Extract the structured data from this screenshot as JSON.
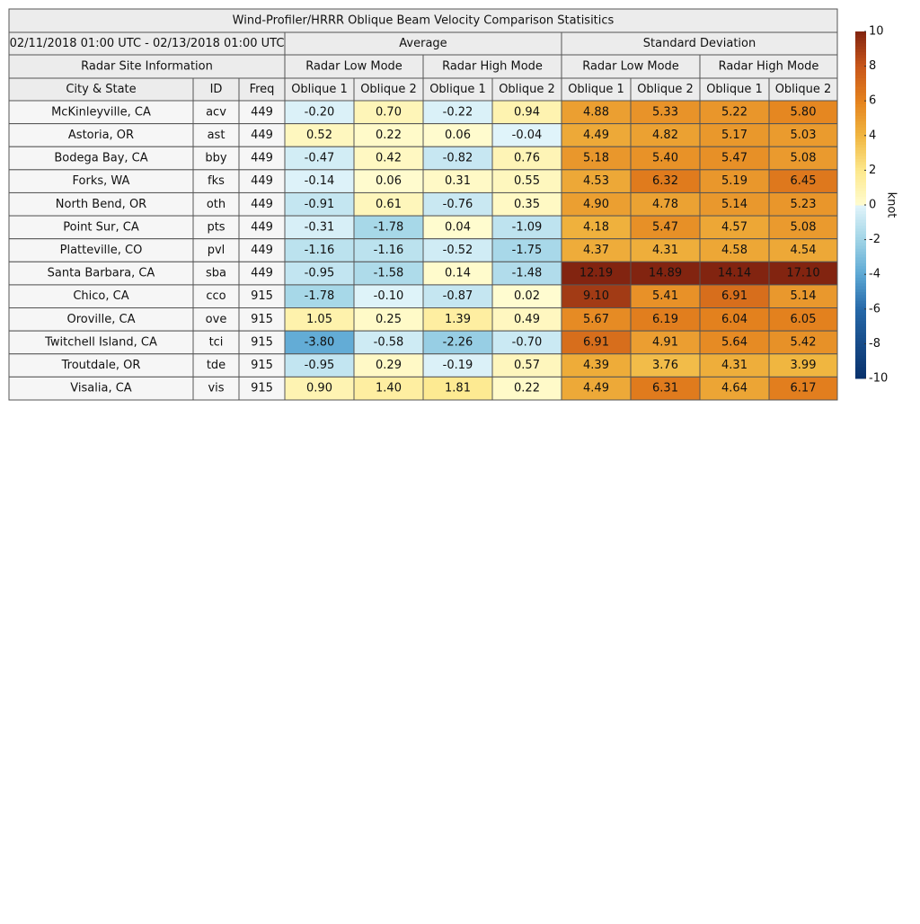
{
  "title": "Wind-Profiler/HRRR Oblique Beam Velocity Comparison Statisitics",
  "period": "02/11/2018 01:00 UTC - 02/13/2018 01:00 UTC",
  "site_info": "Radar Site Information",
  "groups": [
    "Average",
    "Standard Deviation"
  ],
  "modes": [
    "Radar Low Mode",
    "Radar High Mode",
    "Radar Low Mode",
    "Radar High Mode"
  ],
  "columns": [
    "City & State",
    "ID",
    "Freq",
    "Oblique 1",
    "Oblique 2",
    "Oblique 1",
    "Oblique 2",
    "Oblique 1",
    "Oblique 2",
    "Oblique 1",
    "Oblique 2"
  ],
  "rows": [
    [
      "McKinleyville, CA",
      "acv",
      "449",
      "-0.20",
      "0.70",
      "-0.22",
      "0.94",
      "4.88",
      "5.33",
      "5.22",
      "5.80"
    ],
    [
      "Astoria, OR",
      "ast",
      "449",
      "0.52",
      "0.22",
      "0.06",
      "-0.04",
      "4.49",
      "4.82",
      "5.17",
      "5.03"
    ],
    [
      "Bodega Bay, CA",
      "bby",
      "449",
      "-0.47",
      "0.42",
      "-0.82",
      "0.76",
      "5.18",
      "5.40",
      "5.47",
      "5.08"
    ],
    [
      "Forks, WA",
      "fks",
      "449",
      "-0.14",
      "0.06",
      "0.31",
      "0.55",
      "4.53",
      "6.32",
      "5.19",
      "6.45"
    ],
    [
      "North Bend, OR",
      "oth",
      "449",
      "-0.91",
      "0.61",
      "-0.76",
      "0.35",
      "4.90",
      "4.78",
      "5.14",
      "5.23"
    ],
    [
      "Point Sur, CA",
      "pts",
      "449",
      "-0.31",
      "-1.78",
      "0.04",
      "-1.09",
      "4.18",
      "5.47",
      "4.57",
      "5.08"
    ],
    [
      "Platteville, CO",
      "pvl",
      "449",
      "-1.16",
      "-1.16",
      "-0.52",
      "-1.75",
      "4.37",
      "4.31",
      "4.58",
      "4.54"
    ],
    [
      "Santa Barbara, CA",
      "sba",
      "449",
      "-0.95",
      "-1.58",
      "0.14",
      "-1.48",
      "12.19",
      "14.89",
      "14.14",
      "17.10"
    ],
    [
      "Chico, CA",
      "cco",
      "915",
      "-1.78",
      "-0.10",
      "-0.87",
      "0.02",
      "9.10",
      "5.41",
      "6.91",
      "5.14"
    ],
    [
      "Oroville, CA",
      "ove",
      "915",
      "1.05",
      "0.25",
      "1.39",
      "0.49",
      "5.67",
      "6.19",
      "6.04",
      "6.05"
    ],
    [
      "Twitchell Island, CA",
      "tci",
      "915",
      "-3.80",
      "-0.58",
      "-2.26",
      "-0.70",
      "6.91",
      "4.91",
      "5.64",
      "5.42"
    ],
    [
      "Troutdale, OR",
      "tde",
      "915",
      "-0.95",
      "0.29",
      "-0.19",
      "0.57",
      "4.39",
      "3.76",
      "4.31",
      "3.99"
    ],
    [
      "Visalia, CA",
      "vis",
      "915",
      "0.90",
      "1.40",
      "1.81",
      "0.22",
      "4.49",
      "6.31",
      "4.64",
      "6.17"
    ]
  ],
  "colorbar": {
    "label": "knot",
    "ticks": [
      -10,
      -8,
      -6,
      -4,
      -2,
      0,
      2,
      4,
      6,
      8,
      10
    ]
  }
}
